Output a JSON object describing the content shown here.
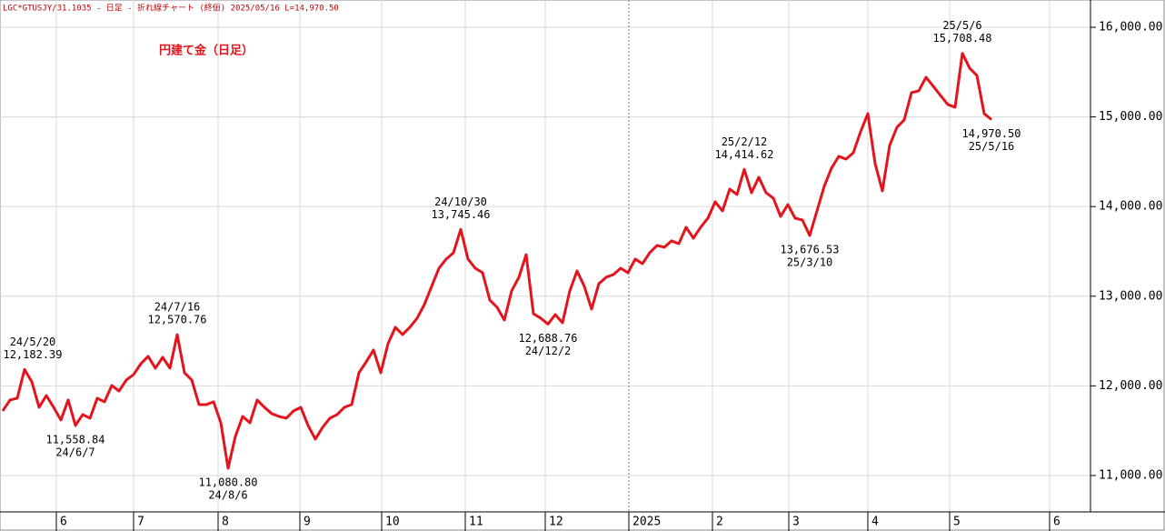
{
  "chart_data": {
    "type": "line",
    "header": "LGC*GTUSJY/31.1035 - 日足 - 折れ線チャート (終値)  2025/05/16 L=14,970.50",
    "title": "円建て金（日足）",
    "color": "#e3141b",
    "values": [
      11720,
      11842,
      11862,
      12182.39,
      12045,
      11761,
      11892,
      11761,
      11619,
      11842,
      11558.84,
      11680,
      11639,
      11862,
      11822,
      12004,
      11943,
      12065,
      12126,
      12247,
      12329,
      12197,
      12318,
      12197,
      12570.76,
      12146,
      12065,
      11791,
      11791,
      11822,
      11588,
      11080.8,
      11436,
      11659,
      11588,
      11842,
      11761,
      11690,
      11659,
      11639,
      11720,
      11761,
      11558,
      11406,
      11538,
      11639,
      11680,
      11761,
      11791,
      12146,
      12268,
      12400,
      12146,
      12471,
      12653,
      12572,
      12653,
      12755,
      12907,
      13110,
      13312,
      13414,
      13485,
      13745.46,
      13414,
      13312,
      13262,
      12957,
      12876,
      12734,
      13059,
      13211,
      13464,
      12805,
      12755,
      12688.76,
      12795,
      12704,
      13059,
      13282,
      13110,
      12856,
      13140,
      13211,
      13241,
      13312,
      13262,
      13414,
      13363,
      13485,
      13566,
      13546,
      13617,
      13586,
      13769,
      13647,
      13769,
      13870,
      14053,
      13951,
      14195,
      14134,
      14414.62,
      14154,
      14327,
      14154,
      14093,
      13890,
      14022,
      13870,
      13850,
      13676.53,
      13951,
      14225,
      14428,
      14560,
      14529,
      14600,
      14834,
      15037,
      14479,
      14174,
      14682,
      14884,
      14966,
      15270,
      15290,
      15442,
      15341,
      15239,
      15138,
      15108,
      15708.48,
      15544,
      15462,
      15037,
      14970.5
    ],
    "value_labels": [
      null,
      null,
      null,
      "12,182.39",
      null,
      null,
      null,
      null,
      null,
      null,
      "11,558.84",
      null,
      null,
      null,
      null,
      null,
      null,
      null,
      null,
      null,
      null,
      null,
      null,
      null,
      "12,570.76",
      null,
      null,
      null,
      null,
      null,
      null,
      "11,080.80",
      null,
      null,
      null,
      null,
      null,
      null,
      null,
      null,
      null,
      null,
      null,
      null,
      null,
      null,
      null,
      null,
      null,
      null,
      null,
      null,
      null,
      null,
      null,
      null,
      null,
      null,
      null,
      null,
      null,
      null,
      null,
      "13,745.46",
      null,
      null,
      null,
      null,
      null,
      null,
      null,
      null,
      null,
      null,
      null,
      "12,688.76",
      null,
      null,
      null,
      null,
      null,
      null,
      null,
      null,
      null,
      null,
      null,
      null,
      null,
      null,
      null,
      null,
      null,
      null,
      null,
      null,
      null,
      null,
      null,
      null,
      null,
      null,
      "14,414.62",
      null,
      null,
      null,
      null,
      null,
      null,
      null,
      null,
      "13,676.53",
      null,
      null,
      null,
      null,
      null,
      null,
      null,
      null,
      null,
      null,
      null,
      null,
      null,
      null,
      null,
      null,
      null,
      null,
      null,
      null,
      "15,708.48",
      null,
      null,
      null,
      "14,970.50"
    ],
    "date_labels": [
      null,
      null,
      null,
      "24/5/20",
      null,
      null,
      null,
      null,
      null,
      null,
      "24/6/7",
      null,
      null,
      null,
      null,
      null,
      null,
      null,
      null,
      null,
      null,
      null,
      null,
      null,
      "24/7/16",
      null,
      null,
      null,
      null,
      null,
      null,
      "24/8/6",
      null,
      null,
      null,
      null,
      null,
      null,
      null,
      null,
      null,
      null,
      null,
      null,
      null,
      null,
      null,
      null,
      null,
      null,
      null,
      null,
      null,
      null,
      null,
      null,
      null,
      null,
      null,
      null,
      null,
      null,
      null,
      "24/10/30",
      null,
      null,
      null,
      null,
      null,
      null,
      null,
      null,
      null,
      null,
      null,
      "24/12/2",
      null,
      null,
      null,
      null,
      null,
      null,
      null,
      null,
      null,
      null,
      null,
      null,
      null,
      null,
      null,
      null,
      null,
      null,
      null,
      null,
      null,
      null,
      null,
      null,
      null,
      null,
      "25/2/12",
      null,
      null,
      null,
      null,
      null,
      null,
      null,
      null,
      "25/3/10",
      null,
      null,
      null,
      null,
      null,
      null,
      null,
      null,
      null,
      null,
      null,
      null,
      null,
      null,
      null,
      null,
      null,
      null,
      null,
      null,
      "25/5/6",
      null,
      null,
      null,
      "25/5/16"
    ],
    "xlim": [
      -0.375,
      149.625
    ],
    "xticks": [
      {
        "value": 7.375,
        "label": "6"
      },
      {
        "value": 18,
        "label": "7"
      },
      {
        "value": 29.625,
        "label": "8"
      },
      {
        "value": 40.875,
        "label": "9"
      },
      {
        "value": 52.125,
        "label": "10"
      },
      {
        "value": 63.625,
        "label": "11"
      },
      {
        "value": 74.625,
        "label": "12"
      },
      {
        "value": 86.125,
        "label": "2025"
      },
      {
        "value": 97.625,
        "label": "2"
      },
      {
        "value": 108.125,
        "label": "3"
      },
      {
        "value": 119,
        "label": "4"
      },
      {
        "value": 130.25,
        "label": "5"
      },
      {
        "value": 144,
        "label": "6"
      }
    ],
    "ylim": [
      10594,
      16304
    ],
    "yticks": [
      {
        "value": 11000,
        "label": "11,000.00"
      },
      {
        "value": 12000,
        "label": "12,000.00"
      },
      {
        "value": 13000,
        "label": "13,000.00"
      },
      {
        "value": 14000,
        "label": "14,000.00"
      },
      {
        "value": 15000,
        "label": "15,000.00"
      },
      {
        "value": 16000,
        "label": "16,000.00"
      }
    ],
    "grid": true
  }
}
